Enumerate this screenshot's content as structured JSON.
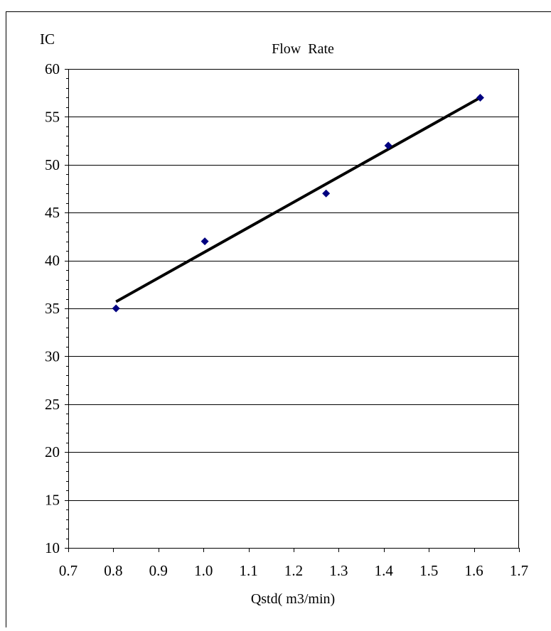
{
  "chart_data": {
    "type": "scatter",
    "title": "Flow  Rate",
    "ylabel": "IC",
    "xlabel": "Qstd( m3/min)",
    "xlim": [
      0.7,
      1.7
    ],
    "ylim": [
      10,
      60
    ],
    "x_ticks": [
      "0.7",
      "0.8",
      "0.9",
      "1.0",
      "1.1",
      "1.2",
      "1.3",
      "1.4",
      "1.5",
      "1.6",
      "1.7"
    ],
    "y_ticks": [
      "10",
      "15",
      "20",
      "25",
      "30",
      "35",
      "40",
      "45",
      "50",
      "55",
      "60"
    ],
    "grid": "horizontal",
    "series": [
      {
        "marker": "diamond",
        "color": "#000080",
        "points": [
          {
            "x": 0.806,
            "y": 35
          },
          {
            "x": 1.003,
            "y": 42
          },
          {
            "x": 1.272,
            "y": 47
          },
          {
            "x": 1.41,
            "y": 52
          },
          {
            "x": 1.614,
            "y": 57
          }
        ]
      }
    ],
    "trendline": {
      "type": "linear",
      "color": "#000000",
      "x_start": 0.806,
      "y_start": 35.7,
      "x_end": 1.614,
      "y_end": 57.0
    }
  }
}
